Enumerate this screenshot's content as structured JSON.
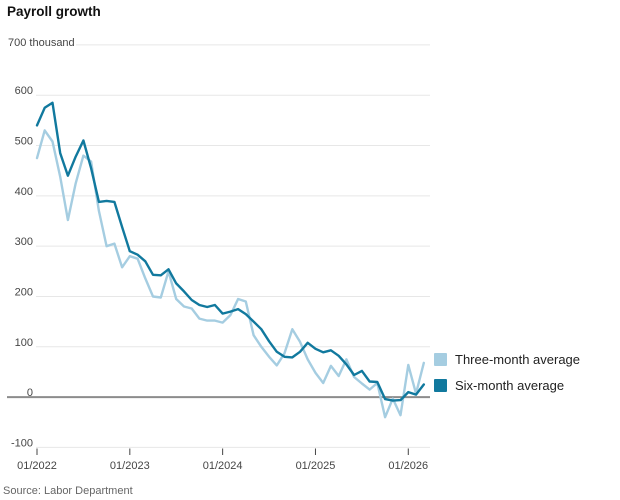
{
  "title": "Payroll growth",
  "source": "Source: Labor Department",
  "y_axis": {
    "top_label": "700 thousand",
    "tick_values": [
      700,
      600,
      500,
      400,
      300,
      200,
      100,
      0,
      -100
    ],
    "unit": "thousand"
  },
  "x_axis": {
    "tick_labels": [
      "01/2022",
      "01/2023",
      "01/2024",
      "01/2025",
      "01/2026"
    ]
  },
  "legend": [
    {
      "label": "Three-month average",
      "color": "#a5cde1"
    },
    {
      "label": "Six-month average",
      "color": "#11799e"
    }
  ],
  "colors": {
    "gridline": "#e7e7e7",
    "zero_line": "#8c8c8c",
    "axis_text": "#454545",
    "tick_mark": "#444444"
  },
  "chart_data": {
    "type": "line",
    "title": "Payroll growth",
    "unit": "thousand",
    "frequency": "monthly",
    "x_start": "01/2022",
    "x_end": "03/2026",
    "ylim": [
      -100,
      700
    ],
    "grid": "horizontal",
    "legend_position": "right",
    "x_tick_labels": [
      "01/2022",
      "01/2023",
      "01/2024",
      "01/2025",
      "01/2026"
    ],
    "months": [
      "2022-01",
      "2022-02",
      "2022-03",
      "2022-04",
      "2022-05",
      "2022-06",
      "2022-07",
      "2022-08",
      "2022-09",
      "2022-10",
      "2022-11",
      "2022-12",
      "2023-01",
      "2023-02",
      "2023-03",
      "2023-04",
      "2023-05",
      "2023-06",
      "2023-07",
      "2023-08",
      "2023-09",
      "2023-10",
      "2023-11",
      "2023-12",
      "2024-01",
      "2024-02",
      "2024-03",
      "2024-04",
      "2024-05",
      "2024-06",
      "2024-07",
      "2024-08",
      "2024-09",
      "2024-10",
      "2024-11",
      "2024-12",
      "2025-01",
      "2025-02",
      "2025-03",
      "2025-04",
      "2025-05",
      "2025-06",
      "2025-07",
      "2025-08",
      "2025-09",
      "2025-10",
      "2025-11",
      "2025-12",
      "2026-01",
      "2026-02",
      "2026-03"
    ],
    "series": [
      {
        "name": "Three-month average",
        "color": "#a5cde1",
        "values": [
          475,
          530,
          508,
          438,
          352,
          425,
          480,
          468,
          370,
          300,
          305,
          258,
          280,
          275,
          236,
          200,
          198,
          250,
          195,
          180,
          176,
          156,
          152,
          152,
          148,
          163,
          195,
          190,
          123,
          100,
          80,
          63,
          87,
          135,
          110,
          75,
          48,
          28,
          62,
          42,
          75,
          40,
          27,
          15,
          28,
          -40,
          -3,
          -36,
          64,
          7,
          68
        ]
      },
      {
        "name": "Six-month average",
        "color": "#11799e",
        "values": [
          540,
          575,
          585,
          485,
          440,
          478,
          510,
          455,
          388,
          390,
          388,
          338,
          290,
          283,
          270,
          243,
          242,
          254,
          226,
          210,
          193,
          183,
          179,
          183,
          166,
          170,
          175,
          165,
          150,
          135,
          111,
          90,
          80,
          79,
          90,
          108,
          96,
          89,
          93,
          82,
          65,
          44,
          52,
          31,
          30,
          -4,
          -7,
          -6,
          10,
          5,
          25
        ]
      }
    ]
  }
}
